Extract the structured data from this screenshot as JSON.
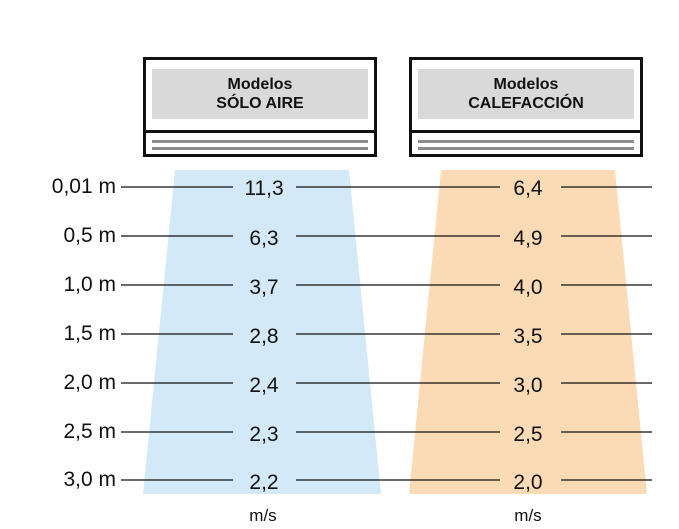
{
  "models": [
    {
      "line1": "Modelos",
      "line2": "SÓLO AIRE",
      "fill_color": "#d4e9f7",
      "unit": "m/s"
    },
    {
      "line1": "Modelos",
      "line2": "CALEFACCIÓN",
      "fill_color": "#fbdbb5",
      "unit": "m/s"
    }
  ],
  "rows": [
    {
      "distance": "0,01 m",
      "solo_aire": "11,3",
      "calefaccion": "6,4"
    },
    {
      "distance": "0,5 m",
      "solo_aire": "6,3",
      "calefaccion": "4,9"
    },
    {
      "distance": "1,0 m",
      "solo_aire": "3,7",
      "calefaccion": "4,0"
    },
    {
      "distance": "1,5 m",
      "solo_aire": "2,8",
      "calefaccion": "3,5"
    },
    {
      "distance": "2,0 m",
      "solo_aire": "2,4",
      "calefaccion": "3,0"
    },
    {
      "distance": "2,5 m",
      "solo_aire": "2,3",
      "calefaccion": "2,5"
    },
    {
      "distance": "3,0 m",
      "solo_aire": "2,2",
      "calefaccion": "2,0"
    }
  ],
  "colors": {
    "line": "#111111",
    "vent": "#8c8c8c",
    "header_bg": "#d9d9d9"
  }
}
